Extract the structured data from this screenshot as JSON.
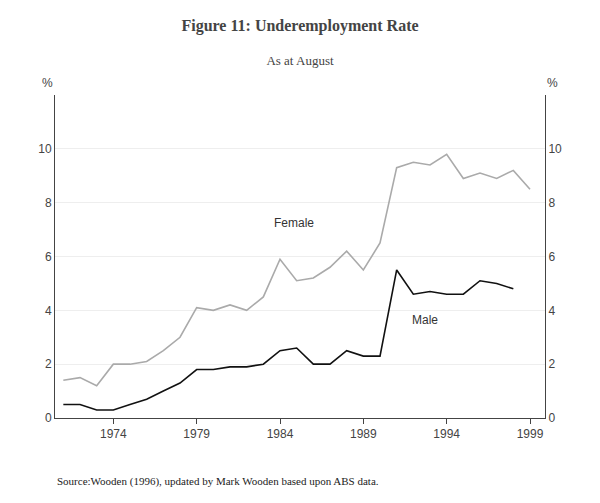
{
  "chart_data": {
    "type": "line",
    "title": "Figure 11: Underemployment Rate",
    "subtitle": "As at August",
    "source": "Source:Wooden (1996), updated by Mark Wooden based upon ABS data.",
    "x": [
      1971,
      1972,
      1973,
      1974,
      1975,
      1976,
      1977,
      1978,
      1979,
      1980,
      1981,
      1982,
      1983,
      1984,
      1985,
      1986,
      1987,
      1988,
      1989,
      1990,
      1991,
      1992,
      1993,
      1994,
      1995,
      1996,
      1997,
      1998,
      1999
    ],
    "series": [
      {
        "name": "Female",
        "color": "#aaaaaa",
        "values": [
          1.4,
          1.5,
          1.2,
          2.0,
          2.0,
          2.1,
          2.5,
          3.0,
          4.1,
          4.0,
          4.2,
          4.0,
          4.5,
          5.9,
          5.1,
          5.2,
          5.6,
          6.2,
          5.5,
          6.5,
          9.3,
          9.5,
          9.4,
          9.8,
          8.9,
          9.1,
          8.9,
          9.2,
          8.5
        ]
      },
      {
        "name": "Male",
        "color": "#111111",
        "values": [
          0.5,
          0.5,
          0.3,
          0.3,
          0.5,
          0.7,
          1.0,
          1.3,
          1.8,
          1.8,
          1.9,
          1.9,
          2.0,
          2.5,
          2.6,
          2.0,
          2.0,
          2.5,
          2.3,
          2.3,
          5.5,
          4.6,
          4.7,
          4.6,
          4.6,
          5.1,
          5.0,
          4.8,
          null
        ]
      }
    ],
    "annotations": [
      {
        "text": "Female",
        "x": 1983.5,
        "y": 6.9
      },
      {
        "text": "Male",
        "x": 1991.8,
        "y": 3.3
      }
    ],
    "ylabel": "%",
    "y2label": "%",
    "xlim": [
      1970.5,
      1999.9
    ],
    "xticks": [
      1974,
      1979,
      1984,
      1989,
      1994,
      1999
    ],
    "ylim": [
      0,
      12
    ],
    "yticks": [
      0,
      2,
      4,
      6,
      8,
      10
    ],
    "y2lim": [
      0,
      12
    ],
    "y2ticks": [
      0,
      2,
      4,
      6,
      8,
      10
    ],
    "grid": true
  }
}
